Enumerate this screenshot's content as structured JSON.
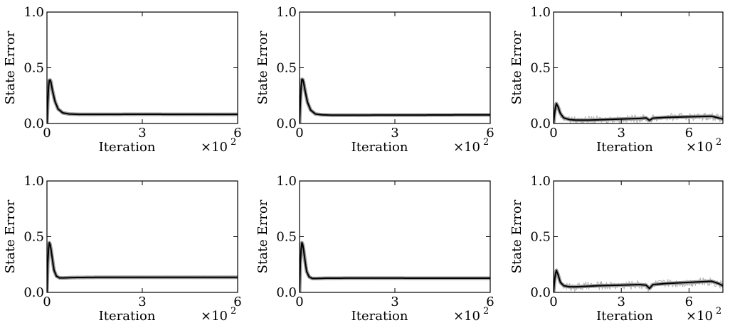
{
  "chart_data": [
    {
      "type": "line",
      "panel": "row1-col1",
      "ylabel": "State Error",
      "xlabel": "Iteration",
      "x_multiplier_label": "×10",
      "x_multiplier_exponent": "2",
      "xlim": [
        0,
        6
      ],
      "ylim": [
        0,
        1
      ],
      "xticks": [
        0,
        3,
        6
      ],
      "xtick_labels": [
        "0",
        "3",
        "6"
      ],
      "yticks": [
        0,
        0.5,
        1
      ],
      "ytick_labels": [
        "0.0",
        "0.5",
        "1.0"
      ],
      "grid": false,
      "series": [
        {
          "x": [
            0,
            0.04,
            0.08,
            0.12,
            0.17,
            0.25,
            0.35,
            0.5,
            0.7,
            1.0,
            2.0,
            3.0,
            4.0,
            5.0,
            6.0
          ],
          "y": [
            0.0,
            0.3,
            0.4,
            0.38,
            0.3,
            0.2,
            0.13,
            0.095,
            0.085,
            0.082,
            0.082,
            0.083,
            0.082,
            0.082,
            0.082
          ]
        }
      ],
      "band_width": 0.012
    },
    {
      "type": "line",
      "panel": "row1-col2",
      "ylabel": "State Error",
      "xlabel": "Iteration",
      "x_multiplier_label": "×10",
      "x_multiplier_exponent": "2",
      "xlim": [
        0,
        6
      ],
      "ylim": [
        0,
        1
      ],
      "xticks": [
        0,
        3,
        6
      ],
      "xtick_labels": [
        "0",
        "3",
        "6"
      ],
      "yticks": [
        0,
        0.5,
        1
      ],
      "ytick_labels": [
        "0.0",
        "0.5",
        "1.0"
      ],
      "grid": false,
      "series": [
        {
          "x": [
            0,
            0.04,
            0.08,
            0.12,
            0.17,
            0.25,
            0.35,
            0.5,
            0.7,
            1.0,
            2.0,
            3.0,
            4.0,
            5.0,
            6.0
          ],
          "y": [
            0.0,
            0.3,
            0.41,
            0.38,
            0.3,
            0.19,
            0.12,
            0.085,
            0.078,
            0.075,
            0.075,
            0.076,
            0.076,
            0.077,
            0.077
          ]
        }
      ],
      "band_width": 0.012
    },
    {
      "type": "line",
      "panel": "row1-col3",
      "ylabel": "State Error",
      "xlabel": "Iteration",
      "x_multiplier_label": "×10",
      "x_multiplier_exponent": "2",
      "xlim": [
        0,
        7.5
      ],
      "ylim": [
        0,
        1
      ],
      "xticks": [
        0,
        3,
        6
      ],
      "xtick_labels": [
        "0",
        "3",
        "6"
      ],
      "yticks": [
        0,
        0.5,
        1
      ],
      "ytick_labels": [
        "0.0",
        "0.5",
        "1.0"
      ],
      "grid": false,
      "series": [
        {
          "x": [
            0,
            0.05,
            0.12,
            0.2,
            0.3,
            0.45,
            0.7,
            1.0,
            1.5,
            2.0,
            3.0,
            3.8,
            4.1,
            4.25,
            4.4,
            5.0,
            6.0,
            7.0,
            7.3,
            7.5
          ],
          "y": [
            0.0,
            0.1,
            0.18,
            0.15,
            0.09,
            0.05,
            0.035,
            0.03,
            0.03,
            0.033,
            0.04,
            0.045,
            0.05,
            0.028,
            0.048,
            0.055,
            0.06,
            0.065,
            0.05,
            0.04
          ]
        }
      ],
      "band_width": 0.035
    },
    {
      "type": "line",
      "panel": "row2-col1",
      "ylabel": "State Error",
      "xlabel": "Iteration",
      "x_multiplier_label": "×10",
      "x_multiplier_exponent": "2",
      "xlim": [
        0,
        6
      ],
      "ylim": [
        0,
        1
      ],
      "xticks": [
        0,
        3,
        6
      ],
      "xtick_labels": [
        "0",
        "3",
        "6"
      ],
      "yticks": [
        0,
        0.5,
        1
      ],
      "ytick_labels": [
        "0.0",
        "0.5",
        "1.0"
      ],
      "grid": false,
      "series": [
        {
          "x": [
            0,
            0.03,
            0.07,
            0.11,
            0.16,
            0.22,
            0.3,
            0.4,
            0.55,
            0.8,
            1.5,
            3.0,
            4.5,
            6.0
          ],
          "y": [
            0.0,
            0.32,
            0.45,
            0.42,
            0.32,
            0.2,
            0.145,
            0.13,
            0.13,
            0.133,
            0.135,
            0.135,
            0.135,
            0.135
          ]
        }
      ],
      "band_width": 0.01
    },
    {
      "type": "line",
      "panel": "row2-col2",
      "ylabel": "State Error",
      "xlabel": "Iteration",
      "x_multiplier_label": "×10",
      "x_multiplier_exponent": "2",
      "xlim": [
        0,
        6
      ],
      "ylim": [
        0,
        1
      ],
      "xticks": [
        0,
        3,
        6
      ],
      "xtick_labels": [
        "0",
        "3",
        "6"
      ],
      "yticks": [
        0,
        0.5,
        1
      ],
      "ytick_labels": [
        "0.0",
        "0.5",
        "1.0"
      ],
      "grid": false,
      "series": [
        {
          "x": [
            0,
            0.03,
            0.07,
            0.11,
            0.16,
            0.22,
            0.3,
            0.4,
            0.55,
            0.8,
            1.5,
            3.0,
            4.5,
            6.0
          ],
          "y": [
            0.0,
            0.32,
            0.45,
            0.42,
            0.31,
            0.19,
            0.14,
            0.125,
            0.125,
            0.127,
            0.128,
            0.128,
            0.127,
            0.127
          ]
        }
      ],
      "band_width": 0.012
    },
    {
      "type": "line",
      "panel": "row2-col3",
      "ylabel": "State Error",
      "xlabel": "Iteration",
      "x_multiplier_label": "×10",
      "x_multiplier_exponent": "2",
      "xlim": [
        0,
        7.5
      ],
      "ylim": [
        0,
        1
      ],
      "xticks": [
        0,
        3,
        6
      ],
      "xtick_labels": [
        "0",
        "3",
        "6"
      ],
      "yticks": [
        0,
        0.5,
        1
      ],
      "ytick_labels": [
        "0.0",
        "0.5",
        "1.0"
      ],
      "grid": false,
      "series": [
        {
          "x": [
            0,
            0.05,
            0.12,
            0.2,
            0.3,
            0.45,
            0.7,
            1.0,
            1.5,
            2.0,
            3.0,
            3.8,
            4.1,
            4.25,
            4.4,
            5.0,
            6.0,
            7.0,
            7.3,
            7.5
          ],
          "y": [
            0.0,
            0.12,
            0.2,
            0.16,
            0.09,
            0.06,
            0.05,
            0.05,
            0.055,
            0.06,
            0.065,
            0.07,
            0.065,
            0.035,
            0.07,
            0.08,
            0.09,
            0.1,
            0.08,
            0.06
          ]
        }
      ],
      "band_width": 0.04
    }
  ]
}
